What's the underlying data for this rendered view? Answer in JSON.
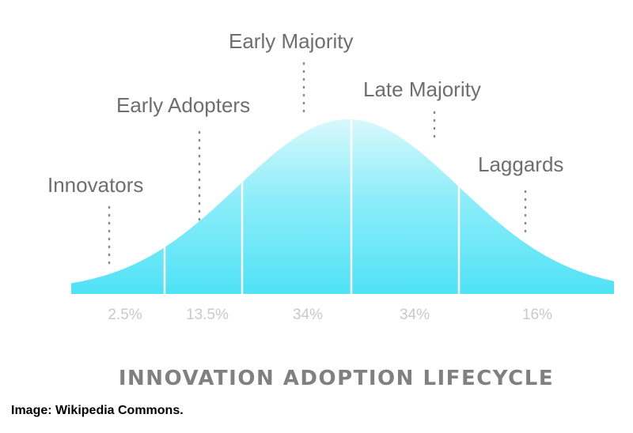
{
  "segments": [
    {
      "label": "Innovators",
      "percent": "2.5%"
    },
    {
      "label": "Early Adopters",
      "percent": "13.5%"
    },
    {
      "label": "Early Majority",
      "percent": "34%"
    },
    {
      "label": "Late Majority",
      "percent": "34%"
    },
    {
      "label": "Laggards",
      "percent": "16%"
    }
  ],
  "title": "INNOVATION ADOPTION LIFECYCLE",
  "credit": "Image: Wikipedia Commons.",
  "colors": {
    "curve_fill_top": "#d6f8fc",
    "curve_fill_bottom": "#52e3f6",
    "segment_divider": "#ffffff",
    "label_text": "#6e6e6e",
    "percent_text": "#c9c9c9",
    "title_text": "#808080",
    "leader_dots": "#8a8a8a"
  }
}
